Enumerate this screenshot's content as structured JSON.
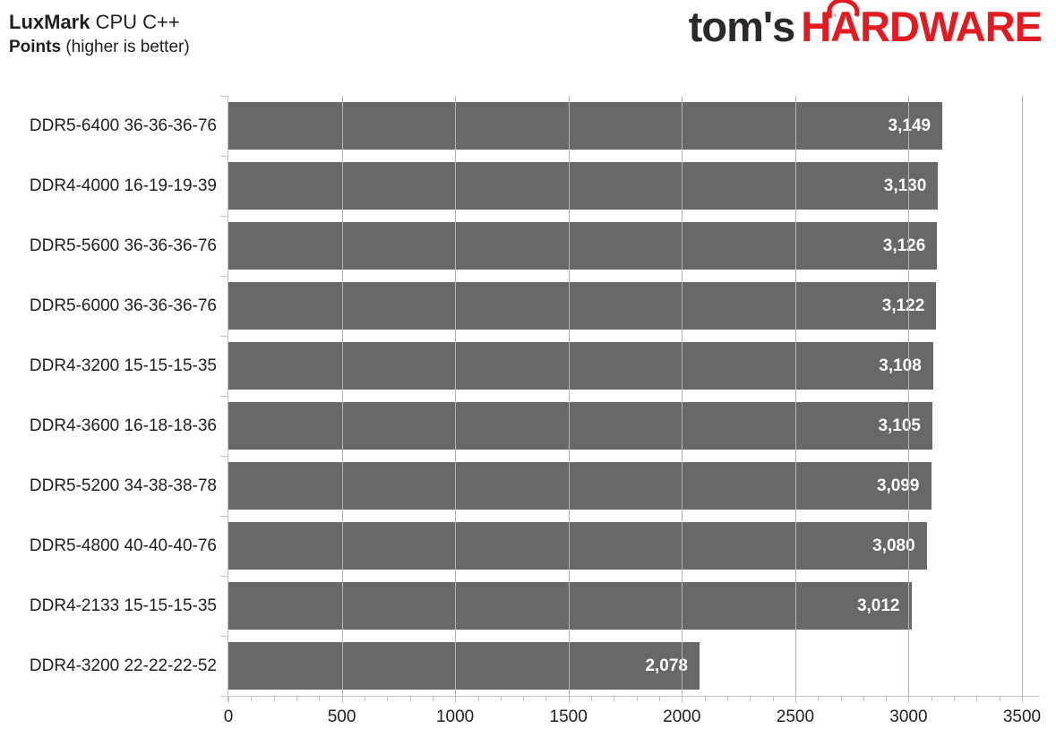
{
  "header": {
    "title_bold": "LuxMark",
    "title_rest": " CPU C++",
    "subtitle_bold": "Points",
    "subtitle_rest": " (higher is better)"
  },
  "logo": {
    "part1": "tom's",
    "part2": "HARDWARE",
    "part1_color": "#2d282a",
    "part2_color": "#e01b22"
  },
  "chart_data": {
    "type": "bar",
    "orientation": "horizontal",
    "title": "LuxMark CPU C++",
    "subtitle": "Points (higher is better)",
    "categories": [
      "DDR5-6400 36-36-36-76",
      "DDR4-4000 16-19-19-39",
      "DDR5-5600 36-36-36-76",
      "DDR5-6000 36-36-36-76",
      "DDR4-3200 15-15-15-35",
      "DDR4-3600 16-18-18-36",
      "DDR5-5200 34-38-38-78",
      "DDR5-4800 40-40-40-76",
      "DDR4-2133 15-15-15-35",
      "DDR4-3200 22-22-22-52"
    ],
    "values": [
      3149,
      3130,
      3126,
      3122,
      3108,
      3105,
      3099,
      3080,
      3012,
      2078
    ],
    "value_labels": [
      "3,149",
      "3,130",
      "3,126",
      "3,122",
      "3,108",
      "3,105",
      "3,099",
      "3,080",
      "3,012",
      "2,078"
    ],
    "xlabel": "",
    "ylabel": "",
    "xlim": [
      0,
      3500
    ],
    "x_major_ticks": [
      0,
      500,
      1000,
      1500,
      2000,
      2500,
      3000,
      3500
    ],
    "x_tick_labels": [
      "0",
      "500",
      "1000",
      "1500",
      "2000",
      "2500",
      "3000",
      "3500"
    ],
    "x_minor_step": 100,
    "grid": "vertical-major-over-bars",
    "legend": "none",
    "colors": {
      "bar": "#686868",
      "value_label": "#ffffff",
      "gridline": "#b3b3b3",
      "axis": "#c2c2c2",
      "text": "#1f1f1f"
    }
  }
}
